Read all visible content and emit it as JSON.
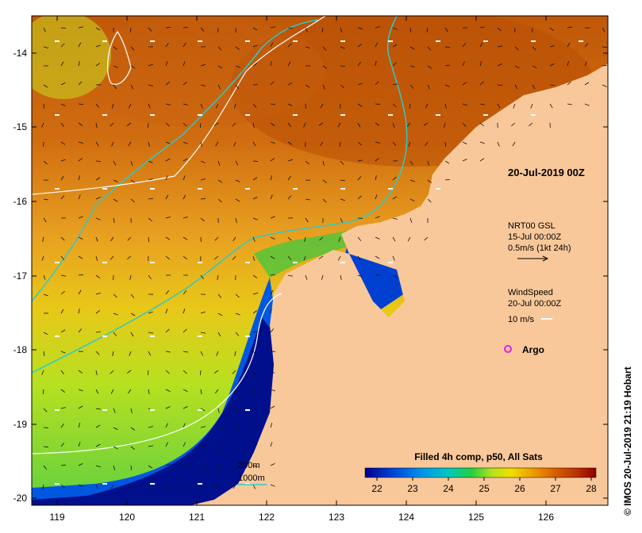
{
  "map": {
    "lon_ticks": [
      "119",
      "120",
      "121",
      "122",
      "123",
      "124",
      "125",
      "126"
    ],
    "lat_ticks": [
      "-14",
      "-15",
      "-16",
      "-17",
      "-18",
      "-19",
      "-20"
    ],
    "land_color": "#f9c89a",
    "contour_200m_color": "#2ec9c9",
    "contour_1000m_color": "#ffffff"
  },
  "legend": {
    "date_title": "20-Jul-2019 00Z",
    "current": {
      "line1": "NRT00 GSL",
      "line2": "15-Jul 00:00Z",
      "line3": "0.5m/s (1kt 24h)"
    },
    "wind": {
      "line1": "WindSpeed",
      "line2": "20-Jul 00:00Z",
      "line3": "10 m/s"
    },
    "argo_label": "Argo",
    "argo_color": "#e020e0",
    "contours": {
      "label_200m": "200m",
      "label_1000m": "1000m"
    }
  },
  "colorbar": {
    "title": "Filled 4h comp, p50, All Sats",
    "ticks": [
      "22",
      "23",
      "24",
      "25",
      "26",
      "27",
      "28"
    ],
    "colors": [
      "#00008b",
      "#0044d8",
      "#0096e8",
      "#00c8c0",
      "#20d040",
      "#b8e020",
      "#f0e000",
      "#f0a000",
      "#d86000",
      "#b83000",
      "#8b0000"
    ]
  },
  "credit": "© IMOS 20-Jul-2019 21:19 Hobart"
}
